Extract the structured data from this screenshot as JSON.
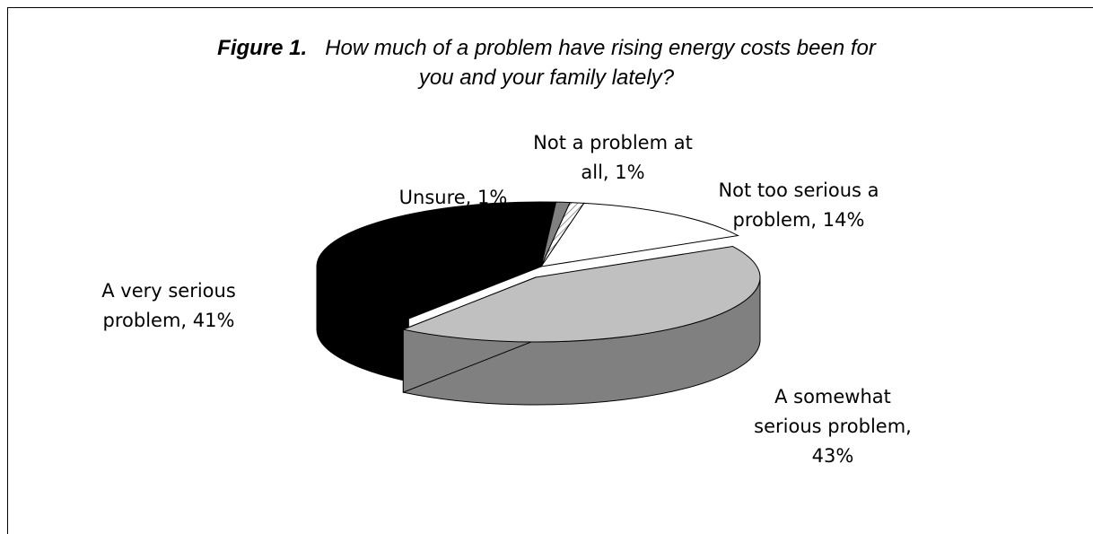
{
  "title": {
    "prefix": "Figure 1.",
    "line1": "How much of a problem have rising energy costs been for",
    "line2": "you and your family lately?"
  },
  "chart_data": {
    "type": "pie",
    "style": "3d",
    "slices": [
      {
        "key": "not_too_serious",
        "label_lines": [
          "Not too serious a",
          "problem, 14%"
        ],
        "value": 14,
        "color": "#ffffff",
        "side": "#ffffff"
      },
      {
        "key": "somewhat_serious",
        "label_lines": [
          "A somewhat",
          "serious problem,",
          "43%"
        ],
        "value": 43,
        "color": "#c0c0c0",
        "side": "#808080"
      },
      {
        "key": "very_serious",
        "label_lines": [
          "A very serious",
          "problem, 41%"
        ],
        "value": 41,
        "color": "#000000",
        "side": "#000000"
      },
      {
        "key": "unsure",
        "label_lines": [
          "Unsure, 1%"
        ],
        "value": 1,
        "color": "#808080",
        "side": "#606060"
      },
      {
        "key": "not_at_all",
        "label_lines": [
          "Not a problem at",
          "all, 1%"
        ],
        "value": 1,
        "color": "#f2f2f2",
        "side": "#d0d0d0"
      }
    ]
  }
}
